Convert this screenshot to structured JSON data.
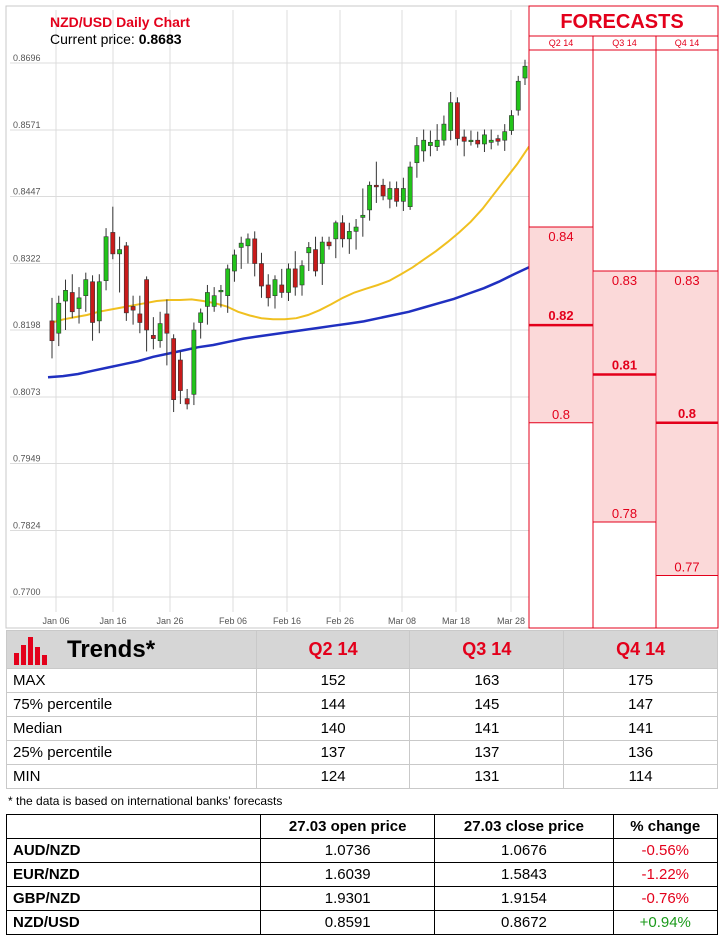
{
  "chart_data": {
    "type": "candlestick",
    "title": "NZD/USD Daily Chart",
    "current_price_label": "Current price:",
    "current_price": "0.8683",
    "y_ticks": [
      "0.8696",
      "0.8571",
      "0.8447",
      "0.8322",
      "0.8198",
      "0.8073",
      "0.7949",
      "0.7824",
      "0.7700"
    ],
    "ylim": [
      0.7675,
      0.8721
    ],
    "x_ticks": [
      "Jan 06",
      "Jan 16",
      "Jan 26",
      "Feb 06",
      "Feb 16",
      "Feb 26",
      "Mar 08",
      "Mar 18",
      "Mar 28"
    ],
    "grid": true,
    "colors": {
      "up": "#22c41a",
      "down": "#c81a1a",
      "ma_short": "#f0c020",
      "ma_long": "#2030c0",
      "forecast": "#e3001b"
    },
    "candles": [
      {
        "o": 0.8215,
        "h": 0.8258,
        "l": 0.8145,
        "c": 0.8178
      },
      {
        "o": 0.8192,
        "h": 0.8262,
        "l": 0.8168,
        "c": 0.8248
      },
      {
        "o": 0.8252,
        "h": 0.8292,
        "l": 0.8198,
        "c": 0.8272
      },
      {
        "o": 0.8268,
        "h": 0.8302,
        "l": 0.822,
        "c": 0.8232
      },
      {
        "o": 0.8238,
        "h": 0.8278,
        "l": 0.821,
        "c": 0.8258
      },
      {
        "o": 0.8262,
        "h": 0.8305,
        "l": 0.8232,
        "c": 0.8292
      },
      {
        "o": 0.8288,
        "h": 0.83,
        "l": 0.8178,
        "c": 0.8212
      },
      {
        "o": 0.8215,
        "h": 0.8302,
        "l": 0.8192,
        "c": 0.8288
      },
      {
        "o": 0.829,
        "h": 0.8388,
        "l": 0.8272,
        "c": 0.8372
      },
      {
        "o": 0.838,
        "h": 0.8428,
        "l": 0.833,
        "c": 0.834
      },
      {
        "o": 0.834,
        "h": 0.8372,
        "l": 0.8268,
        "c": 0.8348
      },
      {
        "o": 0.8355,
        "h": 0.8362,
        "l": 0.8215,
        "c": 0.823
      },
      {
        "o": 0.8242,
        "h": 0.8262,
        "l": 0.8208,
        "c": 0.8235
      },
      {
        "o": 0.8228,
        "h": 0.8262,
        "l": 0.8192,
        "c": 0.8212
      },
      {
        "o": 0.8292,
        "h": 0.8298,
        "l": 0.8158,
        "c": 0.8198
      },
      {
        "o": 0.8188,
        "h": 0.8222,
        "l": 0.8162,
        "c": 0.8182
      },
      {
        "o": 0.8178,
        "h": 0.8232,
        "l": 0.8165,
        "c": 0.821
      },
      {
        "o": 0.8228,
        "h": 0.8255,
        "l": 0.8132,
        "c": 0.8192
      },
      {
        "o": 0.8182,
        "h": 0.819,
        "l": 0.8045,
        "c": 0.8068
      },
      {
        "o": 0.8142,
        "h": 0.8158,
        "l": 0.806,
        "c": 0.8085
      },
      {
        "o": 0.807,
        "h": 0.8088,
        "l": 0.805,
        "c": 0.806
      },
      {
        "o": 0.8078,
        "h": 0.8212,
        "l": 0.8058,
        "c": 0.8198
      },
      {
        "o": 0.8212,
        "h": 0.8238,
        "l": 0.8182,
        "c": 0.823
      },
      {
        "o": 0.8242,
        "h": 0.8282,
        "l": 0.8208,
        "c": 0.8268
      },
      {
        "o": 0.8242,
        "h": 0.8278,
        "l": 0.8232,
        "c": 0.8262
      },
      {
        "o": 0.827,
        "h": 0.8282,
        "l": 0.824,
        "c": 0.8272
      },
      {
        "o": 0.8262,
        "h": 0.832,
        "l": 0.823,
        "c": 0.8312
      },
      {
        "o": 0.8308,
        "h": 0.8348,
        "l": 0.8288,
        "c": 0.8338
      },
      {
        "o": 0.8352,
        "h": 0.8372,
        "l": 0.8312,
        "c": 0.836
      },
      {
        "o": 0.8355,
        "h": 0.8378,
        "l": 0.8322,
        "c": 0.8368
      },
      {
        "o": 0.8368,
        "h": 0.8382,
        "l": 0.8298,
        "c": 0.8322
      },
      {
        "o": 0.8322,
        "h": 0.8342,
        "l": 0.8258,
        "c": 0.828
      },
      {
        "o": 0.8282,
        "h": 0.8302,
        "l": 0.8242,
        "c": 0.8258
      },
      {
        "o": 0.8262,
        "h": 0.83,
        "l": 0.8238,
        "c": 0.8292
      },
      {
        "o": 0.8282,
        "h": 0.8312,
        "l": 0.8258,
        "c": 0.8268
      },
      {
        "o": 0.8268,
        "h": 0.8322,
        "l": 0.8252,
        "c": 0.8312
      },
      {
        "o": 0.8312,
        "h": 0.8345,
        "l": 0.8262,
        "c": 0.8278
      },
      {
        "o": 0.8282,
        "h": 0.8328,
        "l": 0.8262,
        "c": 0.8318
      },
      {
        "o": 0.8342,
        "h": 0.8362,
        "l": 0.8308,
        "c": 0.8352
      },
      {
        "o": 0.8348,
        "h": 0.8372,
        "l": 0.8298,
        "c": 0.8308
      },
      {
        "o": 0.8322,
        "h": 0.8372,
        "l": 0.8282,
        "c": 0.8362
      },
      {
        "o": 0.8362,
        "h": 0.8372,
        "l": 0.8348,
        "c": 0.8355
      },
      {
        "o": 0.8368,
        "h": 0.8402,
        "l": 0.8332,
        "c": 0.8398
      },
      {
        "o": 0.8398,
        "h": 0.8412,
        "l": 0.8352,
        "c": 0.8368
      },
      {
        "o": 0.8368,
        "h": 0.8398,
        "l": 0.834,
        "c": 0.8382
      },
      {
        "o": 0.8382,
        "h": 0.8405,
        "l": 0.8348,
        "c": 0.839
      },
      {
        "o": 0.8408,
        "h": 0.8462,
        "l": 0.8372,
        "c": 0.8412
      },
      {
        "o": 0.8422,
        "h": 0.8475,
        "l": 0.8402,
        "c": 0.8468
      },
      {
        "o": 0.8468,
        "h": 0.8512,
        "l": 0.8435,
        "c": 0.8465
      },
      {
        "o": 0.8468,
        "h": 0.848,
        "l": 0.844,
        "c": 0.8448
      },
      {
        "o": 0.8442,
        "h": 0.8475,
        "l": 0.8425,
        "c": 0.8462
      },
      {
        "o": 0.8462,
        "h": 0.8475,
        "l": 0.8428,
        "c": 0.8438
      },
      {
        "o": 0.8438,
        "h": 0.8482,
        "l": 0.842,
        "c": 0.8462
      },
      {
        "o": 0.8428,
        "h": 0.8512,
        "l": 0.8422,
        "c": 0.8502
      },
      {
        "o": 0.851,
        "h": 0.8558,
        "l": 0.8482,
        "c": 0.8542
      },
      {
        "o": 0.8532,
        "h": 0.8572,
        "l": 0.8512,
        "c": 0.8552
      },
      {
        "o": 0.8542,
        "h": 0.857,
        "l": 0.8522,
        "c": 0.8548
      },
      {
        "o": 0.854,
        "h": 0.8582,
        "l": 0.8532,
        "c": 0.8552
      },
      {
        "o": 0.8552,
        "h": 0.8598,
        "l": 0.8542,
        "c": 0.8582
      },
      {
        "o": 0.857,
        "h": 0.8642,
        "l": 0.8552,
        "c": 0.8622
      },
      {
        "o": 0.8622,
        "h": 0.8632,
        "l": 0.8542,
        "c": 0.8555
      },
      {
        "o": 0.8558,
        "h": 0.8572,
        "l": 0.8522,
        "c": 0.855
      },
      {
        "o": 0.8552,
        "h": 0.857,
        "l": 0.8542,
        "c": 0.8552
      },
      {
        "o": 0.8552,
        "h": 0.8568,
        "l": 0.8538,
        "c": 0.8545
      },
      {
        "o": 0.8545,
        "h": 0.8572,
        "l": 0.853,
        "c": 0.8562
      },
      {
        "o": 0.8548,
        "h": 0.8572,
        "l": 0.8535,
        "c": 0.8552
      },
      {
        "o": 0.8555,
        "h": 0.8562,
        "l": 0.8542,
        "c": 0.855
      },
      {
        "o": 0.8552,
        "h": 0.8582,
        "l": 0.8532,
        "c": 0.8568
      },
      {
        "o": 0.857,
        "h": 0.8608,
        "l": 0.8562,
        "c": 0.8598
      },
      {
        "o": 0.8608,
        "h": 0.8672,
        "l": 0.8598,
        "c": 0.8662
      },
      {
        "o": 0.8668,
        "h": 0.8702,
        "l": 0.8655,
        "c": 0.869
      }
    ],
    "ma_short": [
      0.8212,
      0.8218,
      0.8222,
      0.8226,
      0.8232,
      0.8236,
      0.824,
      0.8244,
      0.8248,
      0.8252,
      0.8254,
      0.8254,
      0.8255,
      0.8252,
      0.8248,
      0.8242,
      0.8232,
      0.8225,
      0.822,
      0.8218,
      0.8218,
      0.822,
      0.8226,
      0.8235,
      0.8246,
      0.8258,
      0.8268,
      0.8275,
      0.8282,
      0.829,
      0.8302,
      0.8315,
      0.833,
      0.8345,
      0.8362,
      0.838,
      0.84,
      0.8424,
      0.8452,
      0.848,
      0.8508,
      0.854
    ],
    "ma_short_x": [
      0,
      1,
      2,
      3,
      4,
      5,
      6,
      7,
      8,
      9,
      10,
      11,
      12,
      13,
      14,
      15,
      16,
      17,
      18,
      19,
      20,
      21,
      22,
      23,
      24,
      25,
      26,
      27,
      28,
      29,
      30,
      31,
      32,
      33,
      34,
      35,
      36,
      37,
      38,
      39,
      40,
      41
    ],
    "ma_long": [
      0.811,
      0.8112,
      0.8116,
      0.8122,
      0.8128,
      0.8134,
      0.814,
      0.8148,
      0.8154,
      0.816,
      0.8166,
      0.817,
      0.8176,
      0.8182,
      0.8186,
      0.819,
      0.8194,
      0.8198,
      0.8202,
      0.8206,
      0.821,
      0.8214,
      0.822,
      0.8226,
      0.8232,
      0.824,
      0.8248,
      0.8256,
      0.8266,
      0.8276,
      0.8288,
      0.8302,
      0.8315
    ],
    "forecasts": {
      "title": "FORECASTS",
      "quarters": [
        {
          "label": "Q2 14",
          "high": "0.84",
          "median": "0.82",
          "low": "0.8",
          "high_v": 0.839,
          "median_v": 0.8207,
          "low_v": 0.8025
        },
        {
          "label": "Q3 14",
          "high": "0.83",
          "median": "0.81",
          "low": "0.78",
          "high_v": 0.8308,
          "median_v": 0.8115,
          "low_v": 0.784
        },
        {
          "label": "Q4 14",
          "high": "0.83",
          "median": "0.8",
          "low": "0.77",
          "high_v": 0.8308,
          "median_v": 0.8025,
          "low_v": 0.774
        }
      ]
    }
  },
  "trends": {
    "title": "Trends*",
    "columns": [
      "Q2 14",
      "Q3 14",
      "Q4 14"
    ],
    "rows": [
      {
        "label": "MAX",
        "values": [
          "152",
          "163",
          "175"
        ]
      },
      {
        "label": "75% percentile",
        "values": [
          "144",
          "145",
          "147"
        ]
      },
      {
        "label": "Median",
        "values": [
          "140",
          "141",
          "141"
        ]
      },
      {
        "label": "25% percentile",
        "values": [
          "137",
          "137",
          "136"
        ]
      },
      {
        "label": "MIN",
        "values": [
          "124",
          "131",
          "114"
        ]
      }
    ],
    "note": "* the data is based on international banks’ forecasts"
  },
  "prices": {
    "columns": [
      "",
      "27.03 open price",
      "27.03 close price",
      "% change"
    ],
    "rows": [
      {
        "pair": "AUD/NZD",
        "open": "1.0736",
        "close": "1.0676",
        "change": "-0.56%",
        "sign": "neg"
      },
      {
        "pair": "EUR/NZD",
        "open": "1.6039",
        "close": "1.5843",
        "change": "-1.22%",
        "sign": "neg"
      },
      {
        "pair": "GBP/NZD",
        "open": "1.9301",
        "close": "1.9154",
        "change": "-0.76%",
        "sign": "neg"
      },
      {
        "pair": "NZD/USD",
        "open": "0.8591",
        "close": "0.8672",
        "change": "+0.94%",
        "sign": "pos"
      }
    ]
  }
}
